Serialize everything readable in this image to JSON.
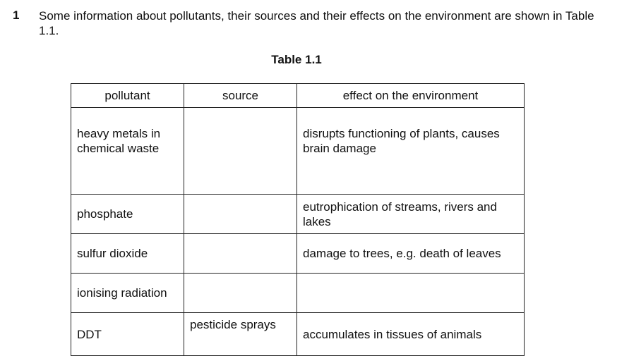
{
  "question": {
    "number": "1",
    "intro": "Some information about pollutants, their sources and their effects on the environment are shown in Table 1.1."
  },
  "table": {
    "title": "Table 1.1",
    "headers": [
      "pollutant",
      "source",
      "effect on the environment"
    ],
    "rows": [
      {
        "pollutant": "heavy metals in chemical waste",
        "source": "",
        "effect": "disrupts functioning of plants, causes brain damage"
      },
      {
        "pollutant": "phosphate",
        "source": "",
        "effect": "eutrophication of streams, rivers and lakes"
      },
      {
        "pollutant": "sulfur dioxide",
        "source": "",
        "effect": "damage to trees, e.g. death of leaves"
      },
      {
        "pollutant": "ionising radiation",
        "source": "",
        "effect": ""
      },
      {
        "pollutant": "DDT",
        "source": "pesticide sprays",
        "effect": "accumulates in tissues of animals"
      }
    ]
  }
}
